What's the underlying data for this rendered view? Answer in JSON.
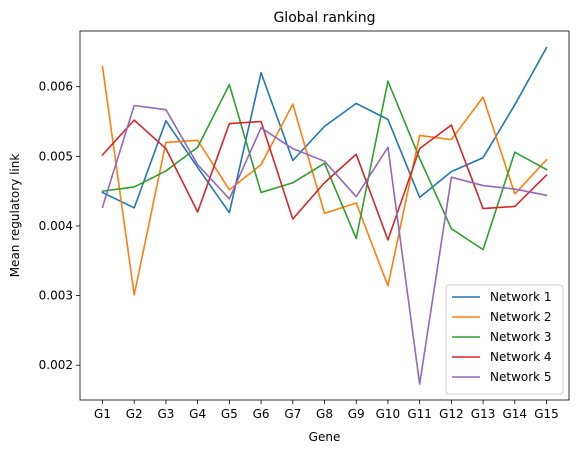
{
  "chart_data": {
    "type": "line",
    "title": "Global ranking",
    "xlabel": "Gene",
    "ylabel": "Mean regulatory link",
    "categories": [
      "G1",
      "G2",
      "G3",
      "G4",
      "G5",
      "G6",
      "G7",
      "G8",
      "G9",
      "G10",
      "G11",
      "G12",
      "G13",
      "G14",
      "G15"
    ],
    "y_ticks": [
      0.002,
      0.003,
      0.004,
      0.005,
      0.006
    ],
    "y_tick_labels": [
      "0.002",
      "0.003",
      "0.004",
      "0.005",
      "0.006"
    ],
    "ylim": [
      0.0015,
      0.0068
    ],
    "grid": false,
    "legend_position": "lower-right",
    "series": [
      {
        "name": "Network 1",
        "color": "#1f77b4",
        "values": [
          0.00448,
          0.00426,
          0.00551,
          0.00484,
          0.00419,
          0.0062,
          0.00494,
          0.00543,
          0.00576,
          0.00553,
          0.00441,
          0.00478,
          0.00498,
          0.00574,
          0.00656
        ]
      },
      {
        "name": "Network 2",
        "color": "#ff7f0e",
        "values": [
          0.00629,
          0.00301,
          0.0052,
          0.00523,
          0.00452,
          0.00488,
          0.00575,
          0.00418,
          0.00433,
          0.00314,
          0.0053,
          0.00524,
          0.00585,
          0.00446,
          0.00495
        ]
      },
      {
        "name": "Network 3",
        "color": "#2ca02c",
        "values": [
          0.0045,
          0.00456,
          0.00479,
          0.00513,
          0.00603,
          0.00448,
          0.00462,
          0.0049,
          0.00382,
          0.00608,
          0.00497,
          0.00396,
          0.00366,
          0.00506,
          0.00481
        ]
      },
      {
        "name": "Network 4",
        "color": "#d62728",
        "values": [
          0.00502,
          0.00552,
          0.00511,
          0.0042,
          0.00547,
          0.0055,
          0.0041,
          0.00462,
          0.00503,
          0.0038,
          0.00511,
          0.00545,
          0.00425,
          0.00428,
          0.00473
        ]
      },
      {
        "name": "Network 5",
        "color": "#9467bd",
        "values": [
          0.00427,
          0.00573,
          0.00567,
          0.00488,
          0.00439,
          0.00541,
          0.00511,
          0.00493,
          0.00442,
          0.00513,
          0.00173,
          0.0047,
          0.00458,
          0.00453,
          0.00444
        ]
      }
    ]
  }
}
